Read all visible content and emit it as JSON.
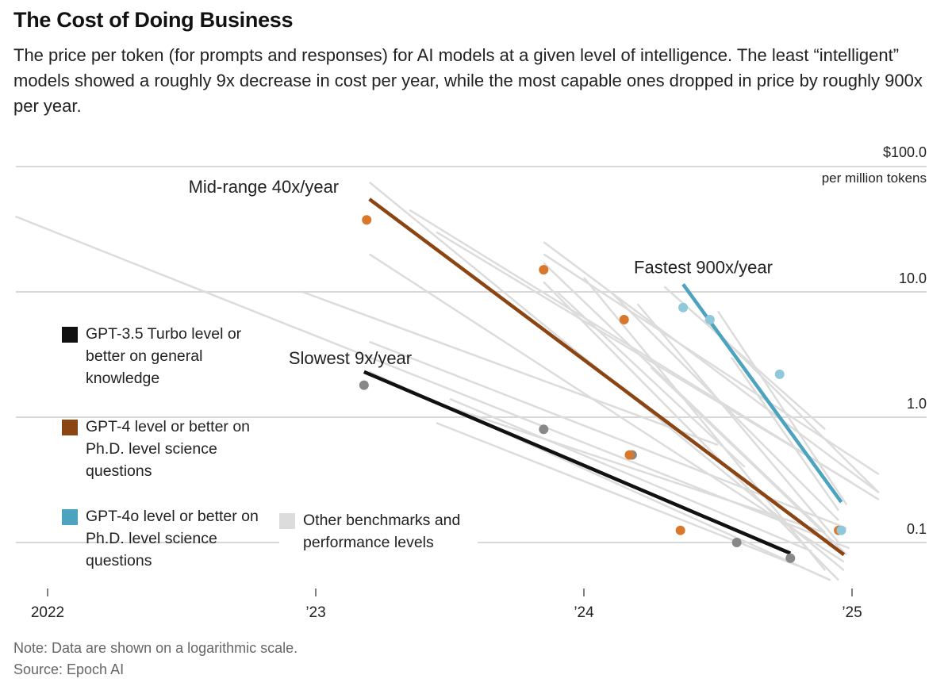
{
  "header": {
    "title": "The Cost of Doing Business",
    "subtitle": "The price per token (for prompts and responses) for AI models at a given level of intelligence. The least “intelligent” models showed a roughly 9x decrease in cost per year, while the most capable ones dropped in price by roughly 900x per year."
  },
  "footer": {
    "note": "Note: Data are shown on a logarithmic scale.",
    "source": "Source: Epoch AI"
  },
  "colors": {
    "gpt35": "#111111",
    "gpt4": "#8B4513",
    "gpt4o": "#4BA3BF",
    "other": "#DCDCDC",
    "gpt35_dot": "#888888",
    "gpt4_dot": "#D9772B",
    "gpt4o_dot": "#8FC8DA",
    "grid": "#D8D8D8"
  },
  "legend": [
    {
      "key": "gpt35",
      "label": "GPT-3.5 Turbo level or better on general knowledge"
    },
    {
      "key": "gpt4",
      "label": "GPT-4 level or better on Ph.D. level science questions"
    },
    {
      "key": "gpt4o",
      "label": "GPT-4o level or better on Ph.D. level science questions"
    },
    {
      "key": "other",
      "label": "Other benchmarks and performance levels"
    }
  ],
  "chart_data": {
    "type": "scatter",
    "scale": "log",
    "x_ticks": [
      {
        "value": 2022.0,
        "label": "2022"
      },
      {
        "value": 2023.0,
        "label": "’23"
      },
      {
        "value": 2024.0,
        "label": "’24"
      },
      {
        "value": 2025.0,
        "label": "’25"
      }
    ],
    "y_ticks": [
      {
        "value": 100,
        "label": "$100.0",
        "label2": "per million tokens"
      },
      {
        "value": 10,
        "label": "10.0"
      },
      {
        "value": 1,
        "label": "1.0"
      },
      {
        "value": 0.1,
        "label": "0.1"
      }
    ],
    "ylim": [
      0.04,
      110
    ],
    "xlim": [
      2021.88,
      2025.35
    ],
    "grid": true,
    "trend_lines": [
      {
        "key": "gpt35",
        "label": "Slowest 9x/year",
        "x": [
          2023.18,
          2024.77
        ],
        "y": [
          2.3,
          0.082
        ]
      },
      {
        "key": "gpt4",
        "label": "Mid-range 40x/year",
        "x": [
          2023.2,
          2024.97
        ],
        "y": [
          55,
          0.08
        ]
      },
      {
        "key": "gpt4o",
        "label": "Fastest 900x/year",
        "x": [
          2024.37,
          2024.96
        ],
        "y": [
          11.5,
          0.21
        ]
      }
    ],
    "points": [
      {
        "key": "gpt35",
        "x": 2023.18,
        "y": 1.8
      },
      {
        "key": "gpt35",
        "x": 2023.85,
        "y": 0.8
      },
      {
        "key": "gpt35",
        "x": 2024.18,
        "y": 0.5
      },
      {
        "key": "gpt35",
        "x": 2024.57,
        "y": 0.1
      },
      {
        "key": "gpt35",
        "x": 2024.77,
        "y": 0.075
      },
      {
        "key": "gpt4",
        "x": 2023.19,
        "y": 37.5
      },
      {
        "key": "gpt4",
        "x": 2023.85,
        "y": 15
      },
      {
        "key": "gpt4",
        "x": 2024.15,
        "y": 6
      },
      {
        "key": "gpt4",
        "x": 2024.17,
        "y": 0.5
      },
      {
        "key": "gpt4",
        "x": 2024.36,
        "y": 0.125
      },
      {
        "key": "gpt4",
        "x": 2024.95,
        "y": 0.125
      },
      {
        "key": "gpt4o",
        "x": 2024.37,
        "y": 7.5
      },
      {
        "key": "gpt4o",
        "x": 2024.47,
        "y": 6
      },
      {
        "key": "gpt4o",
        "x": 2024.73,
        "y": 2.2
      },
      {
        "key": "gpt4o",
        "x": 2024.96,
        "y": 0.125
      }
    ],
    "other_lines": [
      {
        "x": [
          2021.88,
          2024.99
        ],
        "y": [
          40,
          0.09
        ]
      },
      {
        "x": [
          2023.2,
          2024.97
        ],
        "y": [
          75,
          0.06
        ]
      },
      {
        "x": [
          2023.2,
          2024.97
        ],
        "y": [
          20,
          0.07
        ]
      },
      {
        "x": [
          2023.2,
          2024.98
        ],
        "y": [
          4,
          0.13
        ]
      },
      {
        "x": [
          2023.2,
          2024.92
        ],
        "y": [
          2.3,
          0.05
        ]
      },
      {
        "x": [
          2022.95,
          2024.5
        ],
        "y": [
          10,
          0.6
        ]
      },
      {
        "x": [
          2023.35,
          2025.1
        ],
        "y": [
          45,
          0.22
        ]
      },
      {
        "x": [
          2023.45,
          2025.0
        ],
        "y": [
          30,
          0.3
        ]
      },
      {
        "x": [
          2023.5,
          2024.85
        ],
        "y": [
          1.4,
          0.085
        ]
      },
      {
        "x": [
          2023.45,
          2024.8
        ],
        "y": [
          0.9,
          0.065
        ]
      },
      {
        "x": [
          2023.45,
          2024.9
        ],
        "y": [
          1.3,
          0.12
        ]
      },
      {
        "x": [
          2023.85,
          2025.1
        ],
        "y": [
          25,
          0.25
        ]
      },
      {
        "x": [
          2023.85,
          2025.1
        ],
        "y": [
          20,
          0.35
        ]
      },
      {
        "x": [
          2023.85,
          2024.9
        ],
        "y": [
          17,
          0.12
        ]
      },
      {
        "x": [
          2023.85,
          2024.95
        ],
        "y": [
          12,
          0.05
        ]
      },
      {
        "x": [
          2023.9,
          2024.6
        ],
        "y": [
          10,
          0.4
        ]
      },
      {
        "x": [
          2024.0,
          2024.9
        ],
        "y": [
          13,
          0.06
        ]
      },
      {
        "x": [
          2024.1,
          2024.95
        ],
        "y": [
          10,
          0.15
        ]
      },
      {
        "x": [
          2024.2,
          2024.95
        ],
        "y": [
          8,
          0.1
        ]
      },
      {
        "x": [
          2024.3,
          2024.9
        ],
        "y": [
          11,
          0.8
        ]
      },
      {
        "x": [
          2024.45,
          2025.1
        ],
        "y": [
          6,
          0.25
        ]
      },
      {
        "x": [
          2024.5,
          2024.98
        ],
        "y": [
          7,
          0.2
        ]
      },
      {
        "x": [
          2024.55,
          2024.95
        ],
        "y": [
          3,
          0.18
        ]
      },
      {
        "x": [
          2024.25,
          2024.98
        ],
        "y": [
          2.5,
          0.08
        ]
      }
    ]
  }
}
